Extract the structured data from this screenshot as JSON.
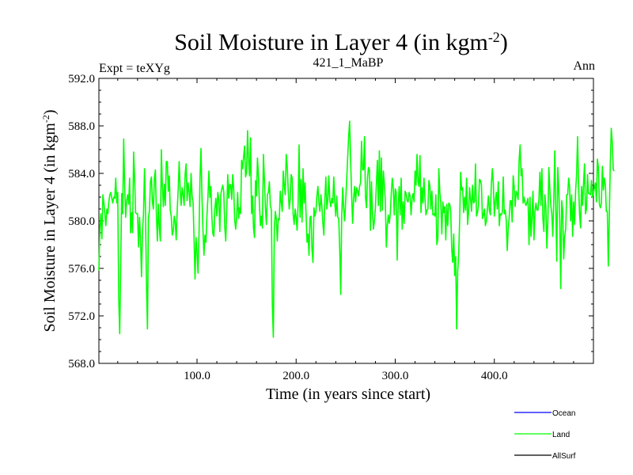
{
  "chart_data": {
    "type": "line",
    "title": "Soil Moisture in Layer 4 (in kgm",
    "title_sup": "-2",
    "title_close": ")",
    "subtitle_left": "Expt = teXYg",
    "subtitle_center": "421_1_MaBP",
    "subtitle_right": "Ann",
    "xlabel": "Time (in years since start)",
    "ylabel": "Soil Moisture in Layer 4 (in kgm",
    "ylabel_sup": "-2",
    "ylabel_close": ")",
    "xlim": [
      1,
      500
    ],
    "ylim": [
      568.0,
      592.0
    ],
    "xticks": [
      100,
      200,
      300,
      400
    ],
    "xtick_labels": [
      "100.0",
      "200.0",
      "300.0",
      "400.0"
    ],
    "yticks": [
      568,
      572,
      576,
      580,
      584,
      588,
      592
    ],
    "ytick_labels": [
      "568.0",
      "572.0",
      "576.0",
      "580.0",
      "584.0",
      "588.0",
      "592.0"
    ],
    "legend_position": "bottom-right",
    "series": [
      {
        "name": "Ocean",
        "color": "#0000ff",
        "values": []
      },
      {
        "name": "Land",
        "color": "#00ff00",
        "x_start": 1,
        "x_step": 1,
        "values": [
          575.8,
          579.5,
          580.6,
          578.5,
          582.2,
          581.5,
          580.6,
          579.6,
          581.0,
          580.6,
          581.6,
          582.2,
          582.4,
          581.9,
          581.5,
          582.0,
          581.9,
          583.6,
          581.5,
          582.4,
          573.5,
          570.5,
          576.2,
          582.3,
          580.6,
          586.9,
          582.9,
          580.3,
          581.7,
          582.2,
          581.4,
          583.6,
          579.0,
          580.7,
          579.0,
          585.8,
          583.7,
          580.7,
          580.6,
          580.6,
          577.8,
          580.3,
          578.4,
          575.3,
          579.1,
          580.6,
          584.4,
          580.8,
          574.6,
          570.9,
          580.2,
          580.9,
          583.3,
          583.7,
          581.6,
          581.0,
          583.6,
          584.3,
          580.6,
          578.3,
          581.4,
          579.4,
          578.3,
          586.0,
          583.0,
          581.2,
          583.1,
          581.3,
          585.0,
          585.0,
          582.5,
          583.8,
          580.9,
          580.4,
          578.8,
          579.1,
          580.4,
          579.9,
          578.4,
          580.9,
          582.6,
          585.0,
          582.6,
          581.3,
          582.8,
          582.2,
          581.3,
          583.9,
          584.8,
          581.7,
          583.2,
          582.4,
          581.2,
          584.0,
          582.1,
          581.6,
          578.5,
          575.1,
          578.6,
          577.4,
          575.6,
          578.8,
          583.6,
          586.1,
          582.0,
          579.3,
          577.1,
          578.8,
          578.2,
          580.4,
          582.0,
          584.2,
          582.0,
          582.9,
          580.3,
          578.9,
          578.7,
          581.0,
          581.9,
          580.4,
          582.4,
          581.8,
          579.1,
          582.2,
          582.7,
          583.0,
          582.4,
          579.5,
          578.3,
          580.9,
          583.9,
          581.9,
          583.1,
          583.0,
          581.8,
          583.9,
          582.7,
          580.1,
          579.3,
          580.3,
          582.4,
          580.2,
          581.1,
          580.6,
          585.1,
          584.4,
          585.4,
          586.3,
          583.7,
          584.1,
          587.6,
          585.1,
          583.8,
          587.0,
          580.6,
          582.1,
          579.4,
          578.6,
          583.4,
          582.1,
          585.3,
          583.8,
          581.4,
          579.6,
          580.4,
          579.4,
          585.6,
          583.5,
          581.1,
          579.7,
          582.2,
          582.4,
          583.3,
          581.3,
          580.9,
          572.9,
          570.2,
          579.2,
          580.8,
          580.2,
          578.3,
          580.2,
          580.1,
          582.5,
          581.6,
          580.8,
          584.2,
          583.0,
          582.2,
          585.6,
          584.6,
          582.6,
          581.0,
          581.8,
          583.9,
          583.6,
          580.6,
          579.7,
          581.0,
          580.3,
          579.2,
          581.4,
          586.4,
          580.3,
          583.5,
          579.9,
          584.4,
          581.5,
          583.2,
          580.6,
          578.2,
          578.9,
          577.1,
          580.3,
          580.4,
          577.6,
          576.5,
          581.1,
          580.4,
          580.8,
          582.1,
          582.9,
          581.5,
          580.8,
          582.2,
          581.2,
          579.8,
          578.8,
          581.8,
          583.7,
          581.0,
          581.8,
          583.8,
          581.7,
          581.2,
          581.9,
          581.5,
          583.7,
          581.6,
          580.4,
          582.1,
          580.3,
          580.2,
          577.6,
          573.8,
          580.4,
          582.8,
          581.0,
          580.0,
          581.7,
          583.4,
          585.3,
          587.1,
          588.4,
          585.1,
          582.2,
          579.8,
          581.9,
          582.9,
          581.6,
          582.8,
          582.5,
          582.1,
          582.9,
          583.2,
          586.7,
          584.3,
          584.3,
          587.1,
          582.0,
          581.1,
          583.6,
          584.5,
          584.3,
          579.2,
          583.3,
          580.8,
          579.3,
          580.0,
          581.1,
          583.1,
          585.1,
          581.3,
          585.9,
          580.8,
          585.3,
          580.9,
          584.2,
          583.1,
          581.7,
          577.8,
          579.6,
          580.5,
          579.8,
          580.6,
          582.3,
          583.6,
          582.8,
          580.5,
          582.7,
          582.4,
          576.7,
          581.4,
          582.9,
          580.5,
          583.6,
          579.3,
          581.6,
          579.8,
          582.5,
          582.3,
          581.7,
          581.6,
          582.4,
          582.1,
          580.5,
          581.9,
          582.3,
          581.6,
          584.2,
          583.0,
          585.6,
          583.3,
          582.9,
          585.5,
          580.7,
          582.8,
          581.5,
          583.6,
          581.9,
          580.5,
          580.9,
          581.0,
          583.4,
          582.9,
          581.0,
          582.5,
          580.5,
          580.6,
          580.4,
          582.2,
          578.0,
          578.5,
          584.4,
          582.4,
          581.5,
          578.9,
          581.6,
          580.7,
          581.2,
          578.4,
          581.4,
          579.6,
          581.5,
          581.4,
          580.8,
          577.6,
          576.5,
          578.9,
          575.4,
          577.0,
          570.9,
          575.7,
          577.1,
          580.0,
          584.1,
          582.6,
          582.8,
          580.7,
          582.0,
          580.9,
          583.6,
          579.7,
          580.7,
          582.8,
          581.8,
          580.8,
          583.0,
          581.5,
          581.6,
          584.8,
          580.4,
          580.7,
          581.3,
          583.5,
          583.4,
          583.0,
          580.2,
          580.5,
          581.0,
          579.6,
          580.0,
          581.0,
          582.1,
          580.9,
          580.5,
          583.1,
          584.4,
          583.1,
          580.4,
          581.7,
          582.4,
          581.0,
          583.3,
          579.6,
          580.6,
          580.5,
          580.7,
          583.7,
          580.6,
          580.9,
          580.1,
          577.5,
          579.3,
          580.3,
          581.7,
          581.7,
          579.9,
          583.8,
          582.9,
          581.2,
          582.5,
          582.3,
          581.8,
          585.1,
          586.4,
          583.8,
          584.4,
          581.5,
          582.0,
          581.5,
          581.3,
          581.6,
          581.9,
          578.0,
          582.0,
          578.7,
          580.3,
          582.5,
          578.4,
          580.8,
          581.5,
          580.9,
          580.9,
          581.8,
          584.1,
          581.3,
          584.4,
          580.2,
          579.1,
          582.2,
          581.2,
          577.7,
          579.9,
          584.5,
          582.7,
          581.3,
          580.6,
          578.7,
          581.9,
          585.9,
          581.0,
          576.6,
          584.5,
          582.8,
          580.1,
          574.3,
          581.7,
          580.8,
          576.8,
          578.7,
          579.3,
          582.2,
          582.2,
          583.6,
          582.8,
          580.0,
          582.2,
          578.7,
          581.6,
          579.7,
          582.5,
          583.9,
          587.1,
          583.1,
          580.6,
          579.4,
          582.9,
          581.3,
          583.1,
          584.8,
          580.6,
          581.0,
          583.9,
          582.3,
          582.3,
          582.2,
          583.4,
          582.0,
          582.3,
          582.8,
          583.2,
          581.6,
          585.2,
          584.5,
          581.4,
          581.1,
          581.5,
          584.6,
          582.6,
          583.6,
          583.1,
          580.8,
          580.8,
          576.2,
          580.2,
          584.8,
          587.8,
          586.6,
          584.3,
          584.2
        ]
      },
      {
        "name": "AllSurf",
        "color": "#000000",
        "values": []
      }
    ]
  }
}
